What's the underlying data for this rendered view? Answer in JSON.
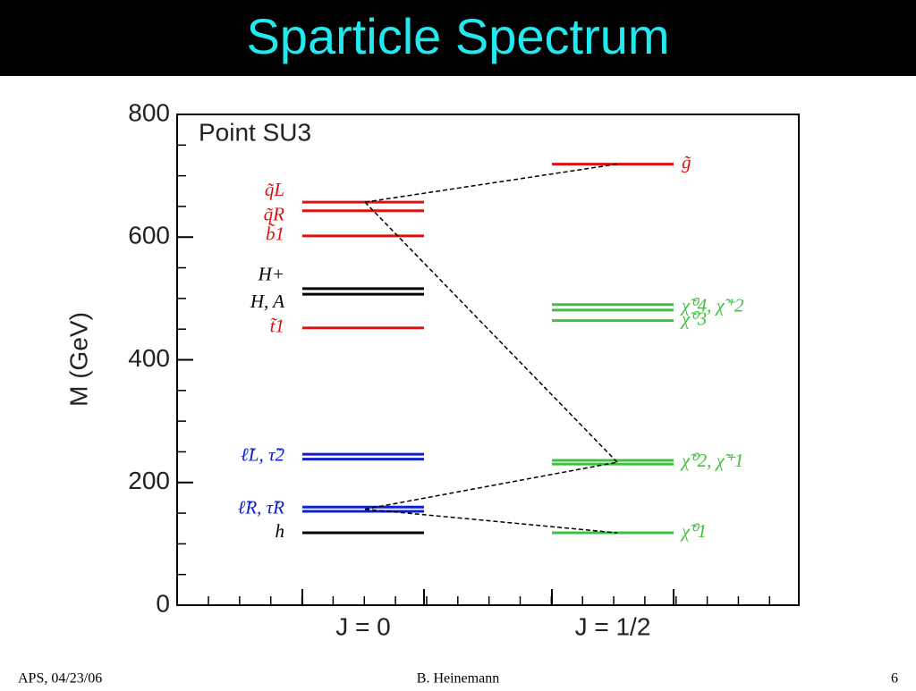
{
  "chart_data": {
    "type": "levels",
    "title": "Sparticle Spectrum",
    "annotation": "Point SU3",
    "y_label": "M (GeV)",
    "categories": [
      "J = 0",
      "J = 1/2"
    ],
    "ylim": [
      0,
      800
    ],
    "yticks": [
      0,
      200,
      400,
      600,
      800
    ],
    "columns": [
      {
        "levels": [
          {
            "label": "q̃L",
            "values": [
              657
            ],
            "color": "#e01010"
          },
          {
            "label": "q̃R",
            "values": [
              643
            ],
            "color": "#e01010"
          },
          {
            "label": "b̃1",
            "values": [
              602
            ],
            "color": "#e01010"
          },
          {
            "label": "H+",
            "values": [
              516
            ],
            "color": "#000000"
          },
          {
            "label": "H, A",
            "values": [
              507
            ],
            "color": "#000000"
          },
          {
            "label": "t̃1",
            "values": [
              452
            ],
            "color": "#e01010"
          },
          {
            "label": "ℓ̃L, τ̃2",
            "values": [
              246,
              238
            ],
            "color": "#1020d0"
          },
          {
            "label": "ℓ̃R, τ̃R",
            "values": [
              160,
              153
            ],
            "color": "#1020d0"
          },
          {
            "label": "h",
            "values": [
              118
            ],
            "color": "#000000"
          }
        ]
      },
      {
        "levels": [
          {
            "label": "g̃",
            "values": [
              719
            ],
            "color": "#e01010"
          },
          {
            "label": "χ̃⁰4, χ̃⁺2",
            "values": [
              490,
              481
            ],
            "color": "#40c040"
          },
          {
            "label": "χ̃⁰3",
            "values": [
              464
            ],
            "color": "#40c040"
          },
          {
            "label": "χ̃⁰2, χ̃⁺1",
            "values": [
              236,
              230
            ],
            "color": "#40c040"
          },
          {
            "label": "χ̃⁰1",
            "values": [
              118
            ],
            "color": "#40c040"
          }
        ]
      }
    ]
  },
  "footer": {
    "left": "APS, 04/23/06",
    "center": "B. Heinemann",
    "right": "6"
  }
}
